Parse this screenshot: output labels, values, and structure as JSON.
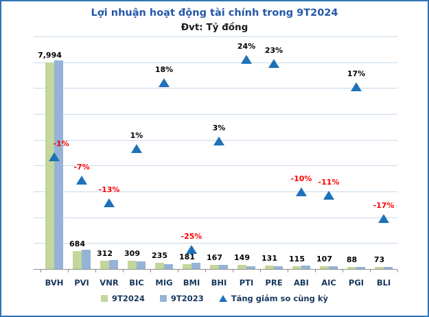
{
  "window": {
    "background": "#FFFFFF",
    "border_color": "#2E75B6"
  },
  "header": {
    "title": "Lợi nhuận hoạt động tài chính trong 9T2024",
    "subtitle": "Đvt: Tỷ đồng",
    "title_color": "#2458A8",
    "subtitle_color": "#1A1A1A"
  },
  "legend": {
    "items": [
      {
        "label": "9T2024",
        "swatch": "square",
        "color": "#C3D69B"
      },
      {
        "label": "9T2023",
        "swatch": "square",
        "color": "#95B3D7"
      },
      {
        "label": "Tăng giảm so cùng kỳ",
        "swatch": "triangle",
        "color": "#1F72B8"
      }
    ]
  },
  "chart_data": {
    "type": "bar",
    "title": "Lợi nhuận hoạt động tài chính trong 9T2024",
    "unit_label": "Đvt: Tỷ đồng",
    "categories": [
      "BVH",
      "PVI",
      "VNR",
      "BIC",
      "MIG",
      "BMI",
      "BHI",
      "PTI",
      "PRE",
      "ABI",
      "AIC",
      "PGI",
      "BLI"
    ],
    "series": [
      {
        "name": "9T2024",
        "type": "bar",
        "color": "#C3D69B",
        "values": [
          7994,
          684,
          312,
          309,
          235,
          181,
          167,
          149,
          131,
          115,
          107,
          88,
          73
        ],
        "data_labels": [
          "7,994",
          "684",
          "312",
          "309",
          "235",
          "181",
          "167",
          "149",
          "131",
          "115",
          "107",
          "88",
          "73"
        ]
      },
      {
        "name": "9T2023",
        "type": "bar",
        "color": "#95B3D7",
        "values": [
          8075,
          735,
          359,
          306,
          199,
          241,
          162,
          120,
          107,
          128,
          120,
          75,
          88
        ],
        "note": "values estimated from 9T2024 values and % change markers; not labeled in chart"
      },
      {
        "name": "Tăng giảm so cùng kỳ",
        "type": "triangle-marker",
        "axis": "secondary",
        "color": "#1F72B8",
        "values_pct": [
          -1,
          -7,
          -13,
          1,
          18,
          -25,
          3,
          24,
          23,
          -10,
          -11,
          17,
          -17
        ],
        "data_labels": [
          "-1%",
          "-7%",
          "-13%",
          "1%",
          "18%",
          "-25%",
          "3%",
          "24%",
          "23%",
          "-10%",
          "-11%",
          "17%",
          "-17%"
        ],
        "label_dx": [
          10,
          0,
          0,
          0,
          0,
          0,
          0,
          0,
          0,
          0,
          0,
          0,
          0
        ]
      }
    ],
    "primary_axis": {
      "min": 0,
      "max": 9000,
      "gridline_step": 1000,
      "tick_labels_visible": false
    },
    "secondary_axis": {
      "min": -30,
      "max": 30,
      "tick_labels_visible": false
    },
    "grid": true,
    "legend_position": "bottom",
    "gridline_color": "#C9DAEA",
    "axis_color": "#8C8C8C",
    "label_colors": {
      "value": "#000000",
      "pct_positive": "#000000",
      "pct_negative": "#FF0000"
    }
  }
}
